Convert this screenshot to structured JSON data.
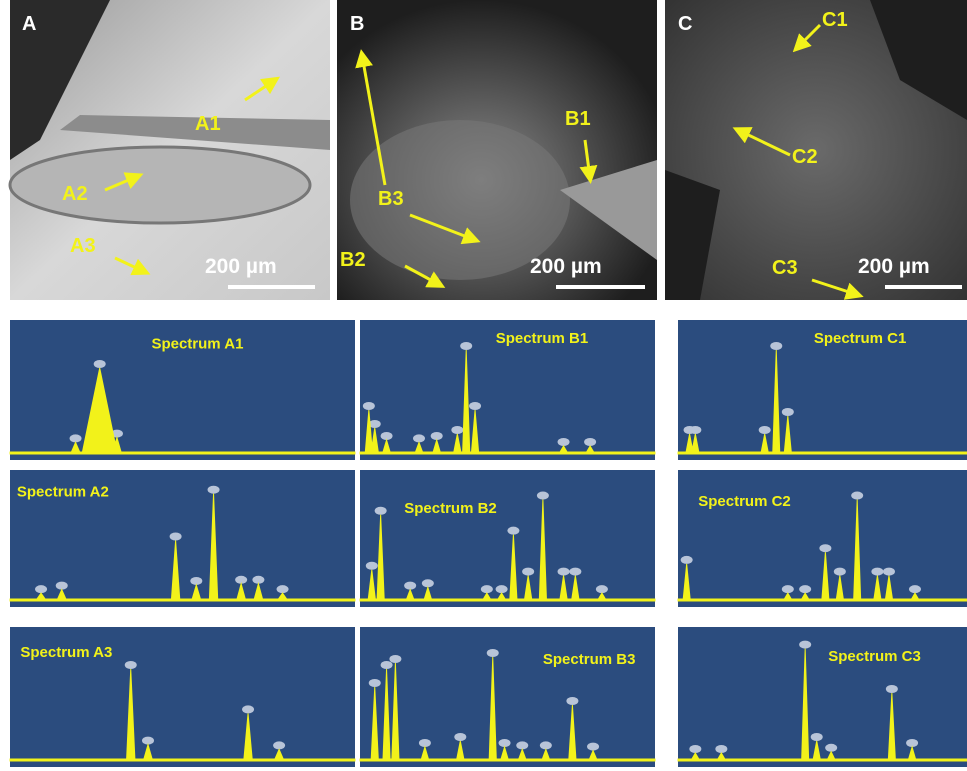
{
  "images": [
    {
      "label": "A",
      "markers": [
        "A1",
        "A2",
        "A3"
      ],
      "scale_bar": "200 µm"
    },
    {
      "label": "B",
      "markers": [
        "B1",
        "B2",
        "B3"
      ],
      "scale_bar": "200 µm"
    },
    {
      "label": "C",
      "markers": [
        "C1",
        "C2",
        "C3"
      ],
      "scale_bar": "200 µm"
    }
  ],
  "spectra": [
    [
      "Spectrum A1",
      "Spectrum B1",
      "Spectrum C1"
    ],
    [
      "Spectrum A2",
      "Spectrum B2",
      "Spectrum C2"
    ],
    [
      "Spectrum A3",
      "Spectrum B3",
      "Spectrum C3"
    ]
  ]
}
